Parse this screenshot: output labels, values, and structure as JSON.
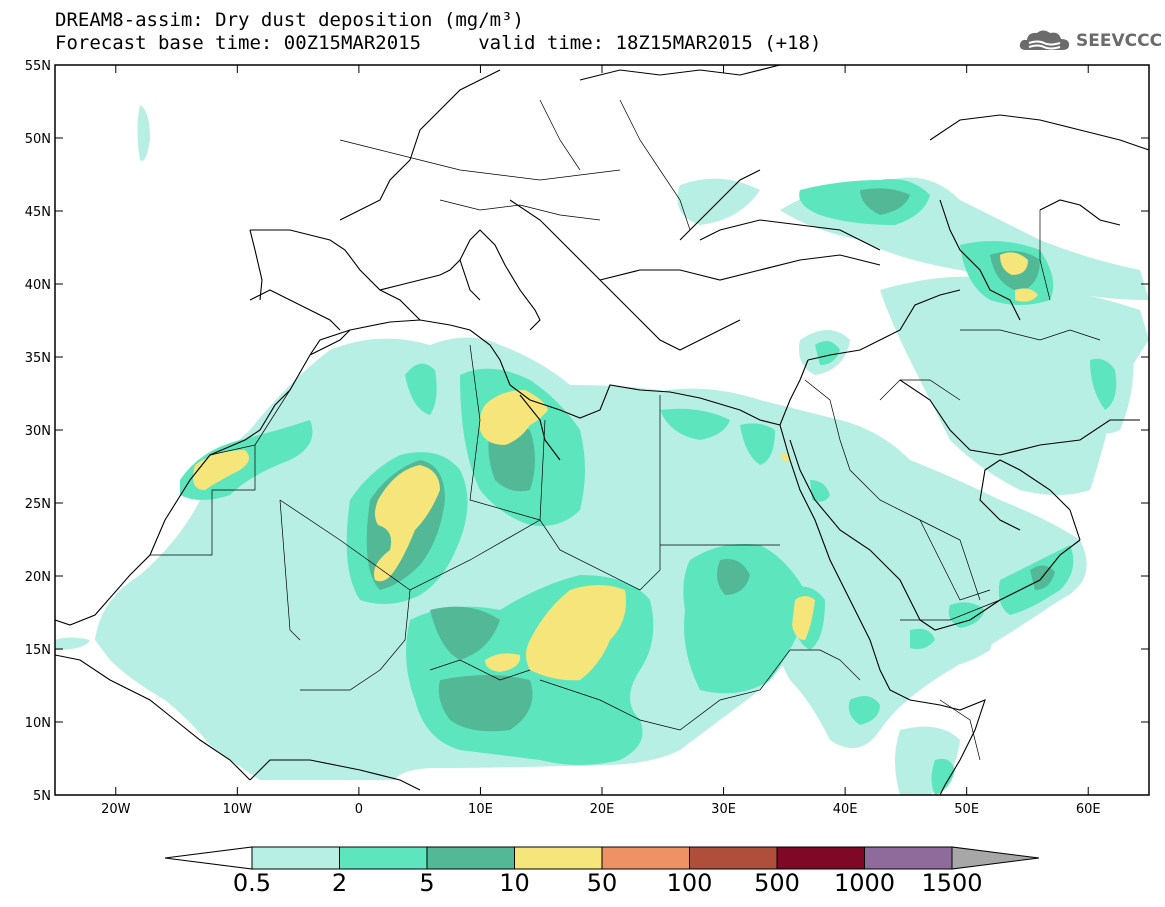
{
  "title": {
    "line1": "DREAM8-assim: Dry dust deposition (mg/m³)",
    "line2": "Forecast base time: 00Z15MAR2015     valid time: 18Z15MAR2015 (+18)"
  },
  "logo": {
    "text": "SEEVCCC",
    "icon": "cloud-icon"
  },
  "map": {
    "lon_range": [
      -25,
      65
    ],
    "lat_range": [
      5,
      55
    ],
    "lat_ticks": [
      {
        "value": 55,
        "label": "55N"
      },
      {
        "value": 50,
        "label": "50N"
      },
      {
        "value": 45,
        "label": "45N"
      },
      {
        "value": 40,
        "label": "40N"
      },
      {
        "value": 35,
        "label": "35N"
      },
      {
        "value": 30,
        "label": "30N"
      },
      {
        "value": 25,
        "label": "25N"
      },
      {
        "value": 20,
        "label": "20N"
      },
      {
        "value": 15,
        "label": "15N"
      },
      {
        "value": 10,
        "label": "10N"
      },
      {
        "value": 5,
        "label": "5N"
      }
    ],
    "lon_ticks": [
      {
        "value": -20,
        "label": "20W"
      },
      {
        "value": -10,
        "label": "10W"
      },
      {
        "value": 0,
        "label": "0"
      },
      {
        "value": 10,
        "label": "10E"
      },
      {
        "value": 20,
        "label": "20E"
      },
      {
        "value": 30,
        "label": "30E"
      },
      {
        "value": 40,
        "label": "40E"
      },
      {
        "value": 50,
        "label": "50E"
      },
      {
        "value": 60,
        "label": "60E"
      }
    ]
  },
  "colorbar": {
    "colors": [
      "#ffffff",
      "#b7efe4",
      "#5de6be",
      "#53b896",
      "#f6e57a",
      "#ee9165",
      "#b04e3c",
      "#7e0826",
      "#8f6b9b",
      "#a7a7a7"
    ],
    "labels": [
      "0.5",
      "2",
      "5",
      "10",
      "50",
      "100",
      "500",
      "1000",
      "1500"
    ]
  },
  "levels": {
    "l1": "#b7efe4",
    "l2": "#5de6be",
    "l3": "#53b896",
    "l4": "#f6e57a"
  }
}
